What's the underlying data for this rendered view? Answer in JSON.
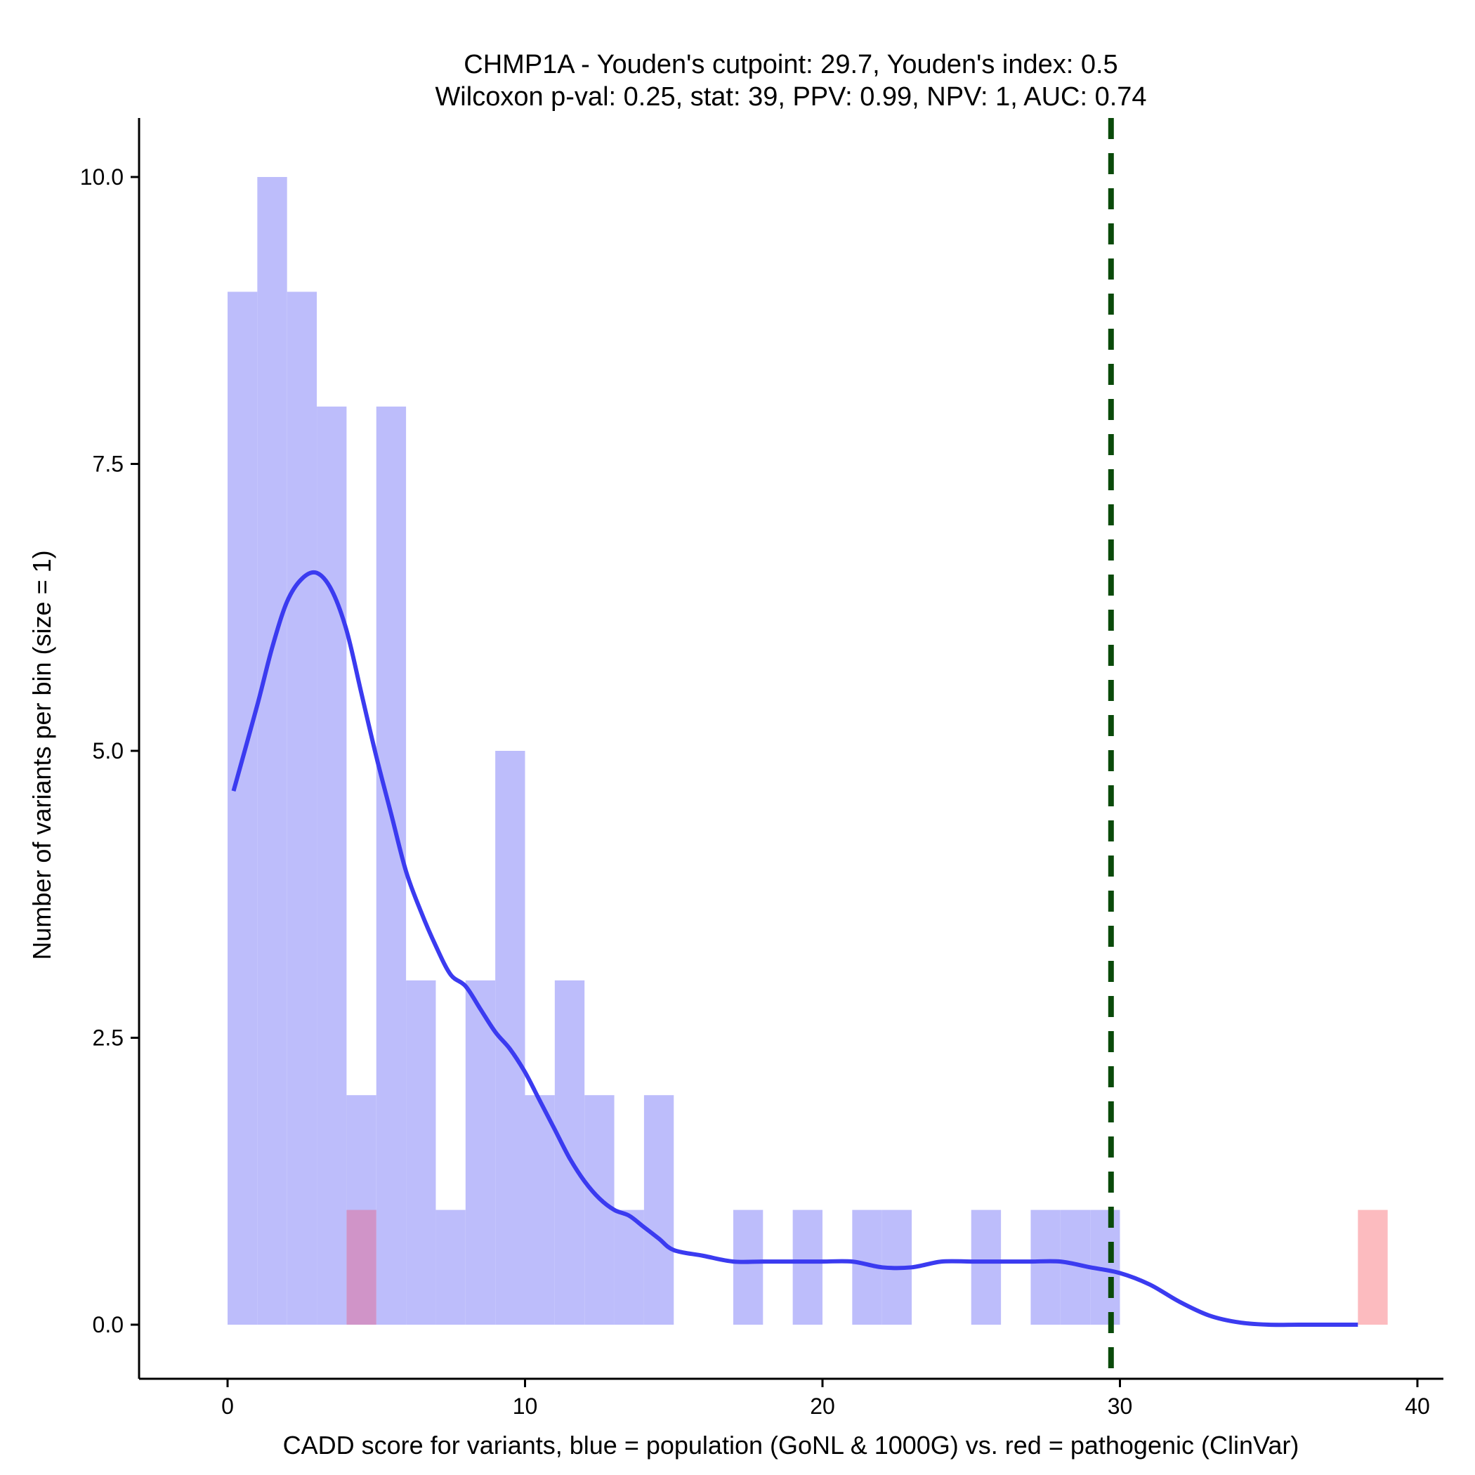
{
  "chart_data": {
    "type": "histogram",
    "title_line1": "CHMP1A - Youden's cutpoint: 29.7, Youden's index: 0.5",
    "title_line2": "Wilcoxon p-val: 0.25, stat: 39, PPV: 0.99, NPV: 1, AUC: 0.74",
    "xlabel": "CADD score for variants, blue = population (GoNL & 1000G) vs. red = pathogenic (ClinVar)",
    "ylabel": "Number of variants per bin (size = 1)",
    "xlim": [
      -3,
      41
    ],
    "ylim": [
      -0.5,
      10.5
    ],
    "x_ticks": [
      0,
      10,
      20,
      30,
      40
    ],
    "x_tick_labels": [
      "0",
      "10",
      "20",
      "30",
      "40"
    ],
    "y_ticks": [
      0,
      2.5,
      5,
      7.5,
      10
    ],
    "y_tick_labels": [
      "0.0",
      "2.5",
      "5.0",
      "7.5",
      "10.0"
    ],
    "bin_width": 1,
    "cutpoint": 29.7,
    "colors": {
      "population": "#bdbdfb",
      "pathogenic": "#fcbbbf",
      "overlap": "#d094c8",
      "density": "#3b3bf0",
      "cutpoint": "#0a4a0a",
      "axis": "#000000"
    },
    "series": [
      {
        "name": "population (GoNL & 1000G)",
        "bins": [
          {
            "start": 0,
            "count": 9
          },
          {
            "start": 1,
            "count": 10
          },
          {
            "start": 2,
            "count": 9
          },
          {
            "start": 3,
            "count": 8
          },
          {
            "start": 4,
            "count": 2
          },
          {
            "start": 5,
            "count": 8
          },
          {
            "start": 6,
            "count": 3
          },
          {
            "start": 7,
            "count": 1
          },
          {
            "start": 8,
            "count": 3
          },
          {
            "start": 9,
            "count": 5
          },
          {
            "start": 10,
            "count": 2
          },
          {
            "start": 11,
            "count": 3
          },
          {
            "start": 12,
            "count": 2
          },
          {
            "start": 13,
            "count": 1
          },
          {
            "start": 14,
            "count": 2
          },
          {
            "start": 17,
            "count": 1
          },
          {
            "start": 19,
            "count": 1
          },
          {
            "start": 21,
            "count": 1
          },
          {
            "start": 22,
            "count": 1
          },
          {
            "start": 25,
            "count": 1
          },
          {
            "start": 27,
            "count": 1
          },
          {
            "start": 28,
            "count": 1
          },
          {
            "start": 29,
            "count": 1
          }
        ]
      },
      {
        "name": "pathogenic (ClinVar)",
        "bins": [
          {
            "start": 4,
            "count": 1
          },
          {
            "start": 38,
            "count": 1
          }
        ]
      }
    ],
    "density_curve": {
      "name": "population density (scaled)",
      "x": [
        0.2,
        1,
        1.5,
        2,
        2.5,
        3,
        3.5,
        4,
        4.5,
        5,
        5.5,
        6,
        6.5,
        7,
        7.5,
        8,
        8.5,
        9,
        9.5,
        10,
        10.5,
        11,
        11.5,
        12,
        12.5,
        13,
        13.5,
        14,
        14.5,
        15,
        16,
        17,
        18,
        19,
        20,
        21,
        22,
        23,
        24,
        25,
        26,
        27,
        28,
        29,
        30,
        31,
        32,
        33,
        34,
        35,
        36,
        37,
        38
      ],
      "y": [
        4.65,
        5.4,
        5.9,
        6.3,
        6.5,
        6.55,
        6.4,
        6.05,
        5.5,
        4.95,
        4.45,
        3.95,
        3.6,
        3.3,
        3.05,
        2.95,
        2.75,
        2.55,
        2.4,
        2.2,
        1.95,
        1.7,
        1.45,
        1.25,
        1.1,
        1.0,
        0.95,
        0.85,
        0.75,
        0.65,
        0.6,
        0.55,
        0.55,
        0.55,
        0.55,
        0.55,
        0.5,
        0.5,
        0.55,
        0.55,
        0.55,
        0.55,
        0.55,
        0.5,
        0.45,
        0.35,
        0.2,
        0.08,
        0.02,
        0.0,
        0.0,
        0.0,
        0.0
      ]
    }
  }
}
